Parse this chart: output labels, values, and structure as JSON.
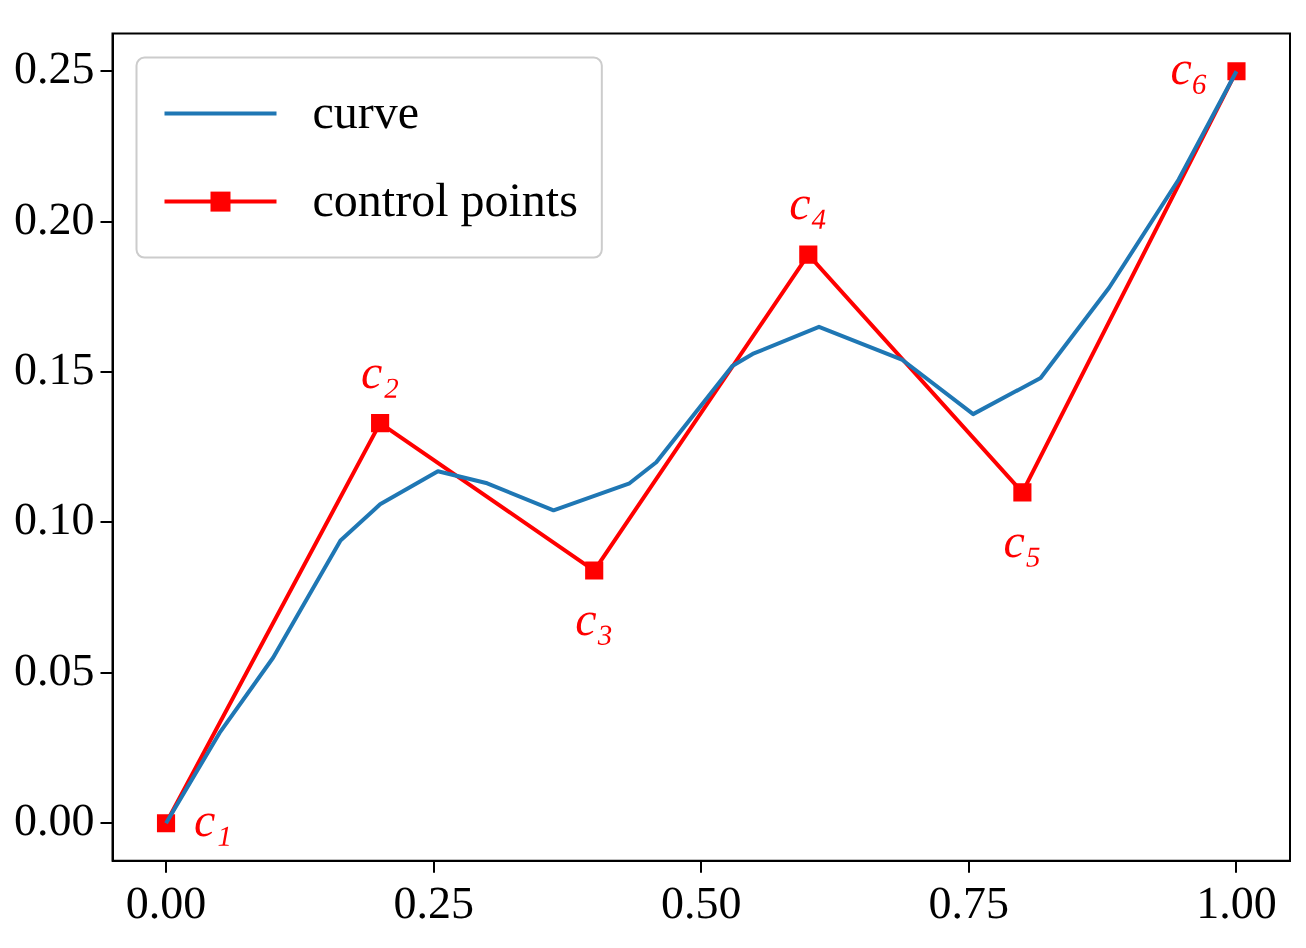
{
  "chart_data": {
    "type": "line",
    "legend": "top left",
    "grid": false,
    "xlim": [
      -0.05,
      1.05
    ],
    "ylim": [
      -0.0125,
      0.2625
    ],
    "xticks": [
      {
        "value": 0,
        "label": "0.00"
      },
      {
        "value": 0.25,
        "label": "0.25"
      },
      {
        "value": 0.5,
        "label": "0.50"
      },
      {
        "value": 0.75,
        "label": "0.75"
      },
      {
        "value": 1,
        "label": "1.00"
      }
    ],
    "yticks": [
      {
        "value": 0,
        "label": "0.00"
      },
      {
        "value": 0.05,
        "label": "0.05"
      },
      {
        "value": 0.1,
        "label": "0.10"
      },
      {
        "value": 0.15,
        "label": "0.15"
      },
      {
        "value": 0.2,
        "label": "0.20"
      },
      {
        "value": 0.25,
        "label": "0.25"
      }
    ],
    "series": [
      {
        "name": "curve",
        "color": "#1f77b4",
        "marker": "none",
        "line_style": "solid",
        "x": [
          0,
          0.05,
          0.1,
          0.163,
          0.2,
          0.254,
          0.3,
          0.362,
          0.433,
          0.458,
          0.529,
          0.548,
          0.61,
          0.688,
          0.754,
          0.817,
          0.881,
          0.946,
          1
        ],
        "values": [
          0,
          0.03,
          0.055,
          0.094,
          0.106,
          0.117,
          0.113,
          0.104,
          0.113,
          0.12,
          0.152,
          0.156,
          0.165,
          0.154,
          0.136,
          0.148,
          0.178,
          0.214,
          0.25
        ]
      },
      {
        "name": "control points",
        "color": "#ff0000",
        "marker": "square",
        "line_style": "solid",
        "x": [
          0,
          0.2,
          0.4,
          0.6,
          0.8,
          1
        ],
        "values": [
          0,
          0.133,
          0.084,
          0.189,
          0.11,
          0.25
        ]
      }
    ],
    "annotations": [
      {
        "text": "c₁",
        "x": 0,
        "y": 0
      },
      {
        "text": "c₂",
        "x": 0.2,
        "y": 0.133
      },
      {
        "text": "c₃",
        "x": 0.4,
        "y": 0.084
      },
      {
        "text": "c₄",
        "x": 0.6,
        "y": 0.189
      },
      {
        "text": "c₅",
        "x": 0.8,
        "y": 0.11
      },
      {
        "text": "c₆",
        "x": 1,
        "y": 0.25
      }
    ]
  }
}
